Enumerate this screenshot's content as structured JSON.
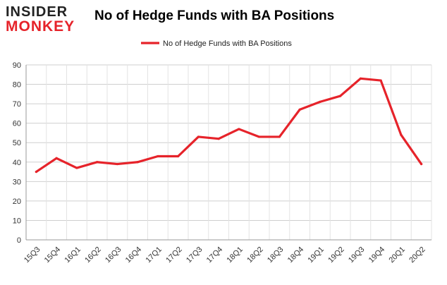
{
  "logo": {
    "line1": "INSIDER",
    "line2": "MONKEY",
    "accent": "#e6232a"
  },
  "chart_data": {
    "type": "line",
    "title": "No of Hedge Funds with BA Positions",
    "xlabel": "",
    "ylabel": "",
    "categories": [
      "15Q3",
      "15Q4",
      "16Q1",
      "16Q2",
      "16Q3",
      "16Q4",
      "17Q1",
      "17Q2",
      "17Q3",
      "17Q4",
      "18Q1",
      "18Q2",
      "18Q3",
      "18Q4",
      "19Q1",
      "19Q2",
      "19Q3",
      "19Q4",
      "20Q1",
      "20Q2"
    ],
    "series": [
      {
        "name": "No of Hedge Funds with BA Positions",
        "color": "#e6232a",
        "values": [
          35,
          42,
          37,
          40,
          39,
          40,
          43,
          43,
          53,
          52,
          57,
          53,
          53,
          67,
          71,
          74,
          83,
          82,
          54,
          39
        ]
      }
    ],
    "ylim": [
      0,
      90
    ],
    "yticks": [
      0,
      10,
      20,
      30,
      40,
      50,
      60,
      70,
      80,
      90
    ],
    "grid": true,
    "legend": "top-center"
  }
}
